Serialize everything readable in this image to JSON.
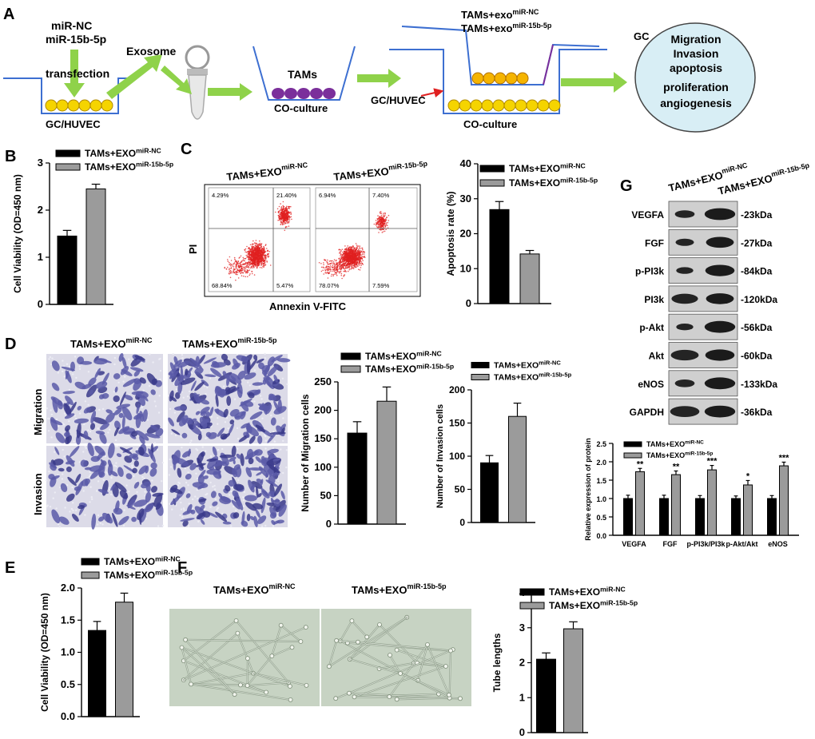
{
  "colors": {
    "nc_bar": "#000000",
    "mir_bar": "#9b9b9b",
    "arrow_green": "#8fd24a",
    "cell_yellow": "#f5d400",
    "tam_purple": "#7b2f9b",
    "well_line": "#3d6fd1",
    "gc_circle": "#d8eef5",
    "facs_red": "#e02020",
    "crystal_violet": "#5a5aa8",
    "blot_band": "#111111",
    "tube_bg": "#c7d3c3"
  },
  "panels": {
    "A": {
      "letter": "A",
      "transfection_top": "miR-NC",
      "transfection_mid": "miR-15b-5p",
      "transfection_label": "transfection",
      "well1_label": "GC/HUVEC",
      "exosome_label": "Exosome",
      "tams_label": "TAMs",
      "coculture1_label": "CO-culture",
      "insert_label_1": "TAMs+exo",
      "insert_sup_1": "miR-NC",
      "insert_label_2": "TAMs+exo",
      "insert_sup_2": "miR-15b-5p",
      "gc_huvec_label": "GC/HUVEC",
      "coculture2_label": "CO-culture",
      "gc_label": "GC",
      "circle_lines": [
        "Migration",
        "Invasion",
        "apoptosis",
        "proliferation",
        "angiogenesis"
      ]
    },
    "B": {
      "letter": "B"
    },
    "C": {
      "letter": "C",
      "facs_x_label": "Annexin V-FITC",
      "facs_y_label": "PI",
      "nc_quadrants": [
        "4.29%",
        "21.40%",
        "68.84%",
        "5.47%"
      ],
      "mir_quadrants": [
        "6.94%",
        "7.40%",
        "78.07%",
        "7.59%"
      ]
    },
    "D": {
      "letter": "D",
      "row_migration": "Migration",
      "row_invasion": "Invasion"
    },
    "E": {
      "letter": "E"
    },
    "F": {
      "letter": "F"
    },
    "G": {
      "letter": "G",
      "blot_rows": [
        {
          "name": "VEGFA",
          "kda": "-23kDa"
        },
        {
          "name": "FGF",
          "kda": "-27kDa"
        },
        {
          "name": "p-PI3k",
          "kda": "-84kDa"
        },
        {
          "name": "PI3k",
          "kda": "-120kDa"
        },
        {
          "name": "p-Akt",
          "kda": "-56kDa"
        },
        {
          "name": "Akt",
          "kda": "-60kDa"
        },
        {
          "name": "eNOS",
          "kda": "-133kDa"
        },
        {
          "name": "GAPDH",
          "kda": "-36kDa"
        }
      ]
    }
  },
  "group_labels": {
    "nc_main": "TAMs+EXO",
    "nc_sup": "miR-NC",
    "mir_main": "TAMs+EXO",
    "mir_sup": "miR-15b-5p"
  },
  "chart_data": [
    {
      "id": "B",
      "type": "bar",
      "ylabel": "Cell Viability (OD=450 nm)",
      "ylim": [
        0,
        3
      ],
      "yticks": [
        0,
        1,
        2,
        3
      ],
      "series": [
        {
          "name": "TAMs+EXO miR-NC",
          "values": [
            1.45
          ],
          "errors": [
            0.12
          ]
        },
        {
          "name": "TAMs+EXO miR-15b-5p",
          "values": [
            2.45
          ],
          "errors": [
            0.1
          ]
        }
      ],
      "significance": [
        "",
        "***"
      ],
      "legend": "top-left"
    },
    {
      "id": "C",
      "type": "bar",
      "ylabel": "Apoptosis rate (%)",
      "ylim": [
        0,
        40
      ],
      "yticks": [
        0,
        10,
        20,
        30,
        40
      ],
      "series": [
        {
          "name": "TAMs+EXO miR-NC",
          "values": [
            26.9
          ],
          "errors": [
            2.3
          ]
        },
        {
          "name": "TAMs+EXO miR-15b-5p",
          "values": [
            14.2
          ],
          "errors": [
            1.0
          ]
        }
      ],
      "significance": [
        "",
        "**"
      ],
      "legend": "top-right"
    },
    {
      "id": "D-migration",
      "type": "bar",
      "ylabel": "Number of Migration cells",
      "ylim": [
        0,
        250
      ],
      "yticks": [
        0,
        50,
        100,
        150,
        200,
        250
      ],
      "series": [
        {
          "name": "TAMs+EXO miR-NC",
          "values": [
            160
          ],
          "errors": [
            20
          ]
        },
        {
          "name": "TAMs+EXO miR-15b-5p",
          "values": [
            216
          ],
          "errors": [
            25
          ]
        }
      ],
      "significance": [
        "",
        "*"
      ],
      "legend": "top"
    },
    {
      "id": "D-invasion",
      "type": "bar",
      "ylabel": "Number of Invasion cells",
      "ylim": [
        0,
        200
      ],
      "yticks": [
        0,
        50,
        100,
        150,
        200
      ],
      "series": [
        {
          "name": "TAMs+EXO miR-NC",
          "values": [
            90
          ],
          "errors": [
            11
          ]
        },
        {
          "name": "TAMs+EXO miR-15b-5p",
          "values": [
            160
          ],
          "errors": [
            20
          ]
        }
      ],
      "significance": [
        "",
        "**"
      ],
      "legend": "top"
    },
    {
      "id": "E",
      "type": "bar",
      "ylabel": "Cell Viability (OD=450 nm)",
      "ylim": [
        0,
        2.0
      ],
      "yticks": [
        0,
        0.5,
        1.0,
        1.5,
        2.0
      ],
      "ytick_labels": [
        "0.0",
        "0.5",
        "1.0",
        "1.5",
        "2.0"
      ],
      "series": [
        {
          "name": "TAMs+EXO miR-NC",
          "values": [
            1.34
          ],
          "errors": [
            0.14
          ]
        },
        {
          "name": "TAMs+EXO miR-15b-5p",
          "values": [
            1.78
          ],
          "errors": [
            0.14
          ]
        }
      ],
      "significance": [
        "",
        "*"
      ],
      "legend": "top"
    },
    {
      "id": "F",
      "type": "bar",
      "ylabel": "Tube lengths",
      "ylim": [
        0,
        4
      ],
      "yticks": [
        0,
        1,
        2,
        3,
        4
      ],
      "series": [
        {
          "name": "TAMs+EXO miR-NC",
          "values": [
            2.1
          ],
          "errors": [
            0.18
          ]
        },
        {
          "name": "TAMs+EXO miR-15b-5p",
          "values": [
            2.97
          ],
          "errors": [
            0.2
          ]
        }
      ],
      "significance": [
        "",
        "**"
      ],
      "legend": "top"
    },
    {
      "id": "G",
      "type": "bar",
      "ylabel": "Relative expression of protein",
      "ylim": [
        0,
        2.5
      ],
      "yticks": [
        0,
        0.5,
        1.0,
        1.5,
        2.0,
        2.5
      ],
      "ytick_labels": [
        "0.0",
        "0.5",
        "1.0",
        "1.5",
        "2.0",
        "2.5"
      ],
      "categories": [
        "VEGFA",
        "FGF",
        "p-PI3k/PI3k",
        "p-Akt/Akt",
        "eNOS"
      ],
      "series": [
        {
          "name": "TAMs+EXO miR-NC",
          "values": [
            1.0,
            1.0,
            1.0,
            1.0,
            1.0
          ],
          "errors": [
            0.09,
            0.09,
            0.08,
            0.07,
            0.08
          ]
        },
        {
          "name": "TAMs+EXO miR-15b-5p",
          "values": [
            1.73,
            1.65,
            1.78,
            1.37,
            1.89
          ],
          "errors": [
            0.09,
            0.1,
            0.12,
            0.12,
            0.1
          ]
        }
      ],
      "significance": [
        "**",
        "**",
        "***",
        "*",
        "***"
      ],
      "legend": "top-left"
    }
  ]
}
